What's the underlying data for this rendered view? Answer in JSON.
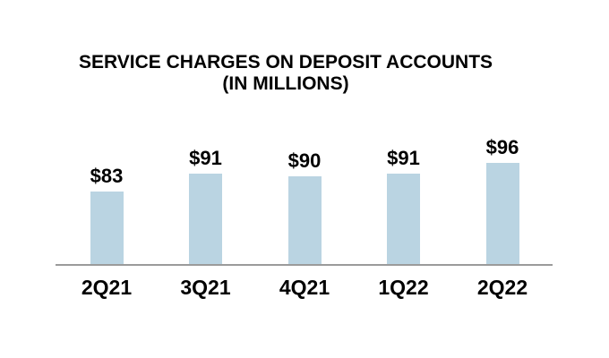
{
  "chart_data": {
    "type": "bar",
    "title": "SERVICE CHARGES ON DEPOSIT ACCOUNTS",
    "subtitle": "(IN MILLIONS)",
    "categories": [
      "2Q21",
      "3Q21",
      "4Q21",
      "1Q22",
      "2Q22"
    ],
    "values": [
      83,
      91,
      90,
      91,
      96
    ],
    "value_labels": [
      "$83",
      "$91",
      "$90",
      "$91",
      "$96"
    ],
    "value_prefix": "$",
    "xlabel": "",
    "ylabel": "",
    "ylim": [
      50,
      100
    ],
    "gridlines": false,
    "legend": false,
    "value_labels_position": "above-bars",
    "bar_color": "#BAD4E2",
    "axis_line_color": "#9B9B9B",
    "text_color": "#000000",
    "background_color": "#FFFFFF"
  }
}
